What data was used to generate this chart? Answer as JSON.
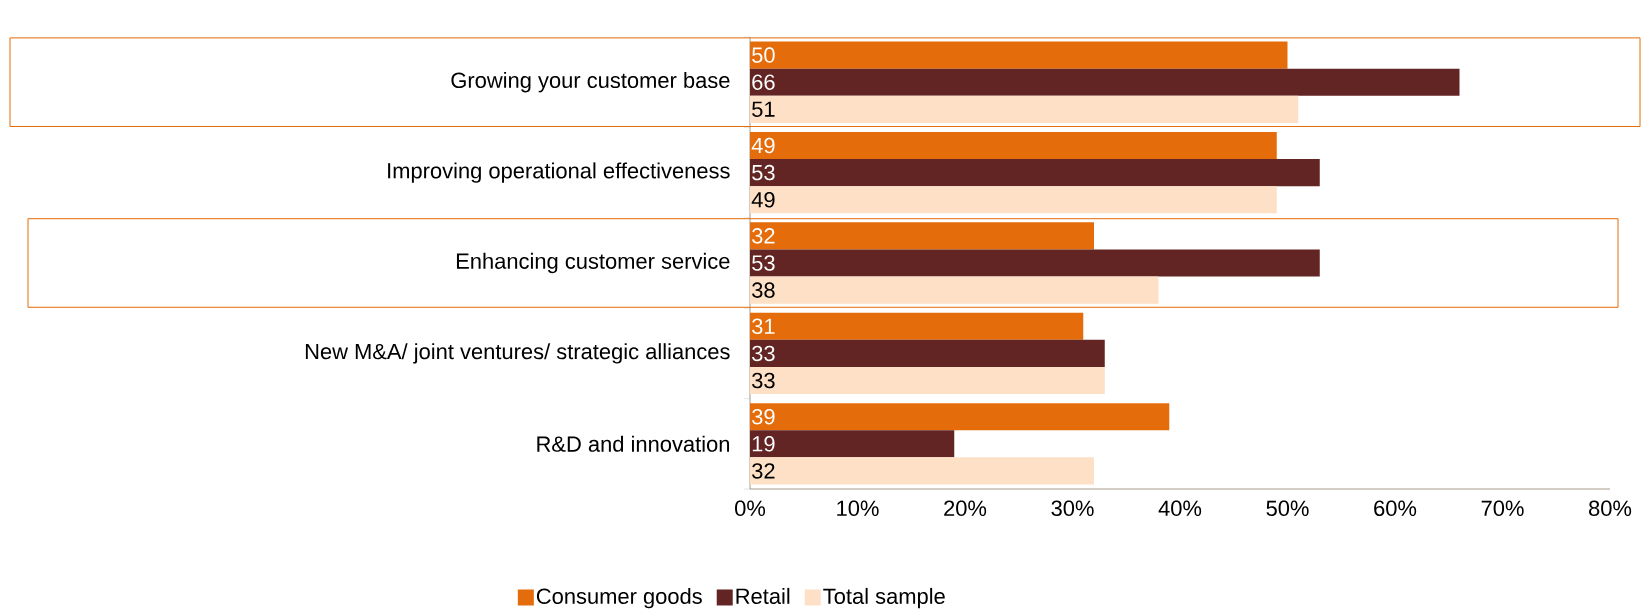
{
  "chart_data": {
    "type": "bar",
    "orientation": "horizontal",
    "categories": [
      "Growing your customer base",
      "Improving operational effectiveness",
      "Enhancing customer service",
      "New M&A/ joint ventures/ strategic alliances",
      "R&D and innovation"
    ],
    "series": [
      {
        "name": "Consumer goods",
        "color": "#e46c0a",
        "values": [
          50,
          49,
          32,
          31,
          39
        ]
      },
      {
        "name": "Retail",
        "color": "#632523",
        "values": [
          66,
          53,
          53,
          33,
          19
        ]
      },
      {
        "name": "Total sample",
        "color": "#fde0c5",
        "values": [
          51,
          49,
          38,
          33,
          32
        ]
      }
    ],
    "xlim": [
      0,
      80
    ],
    "xticks": [
      {
        "value": 0,
        "label": "0%"
      },
      {
        "value": 10,
        "label": "10%"
      },
      {
        "value": 20,
        "label": "20%"
      },
      {
        "value": 30,
        "label": "30%"
      },
      {
        "value": 40,
        "label": "40%"
      },
      {
        "value": 50,
        "label": "50%"
      },
      {
        "value": 60,
        "label": "60%"
      },
      {
        "value": 70,
        "label": "70%"
      },
      {
        "value": 80,
        "label": "80%"
      }
    ],
    "data_labels": true,
    "legend": "bottom",
    "grid": false
  }
}
